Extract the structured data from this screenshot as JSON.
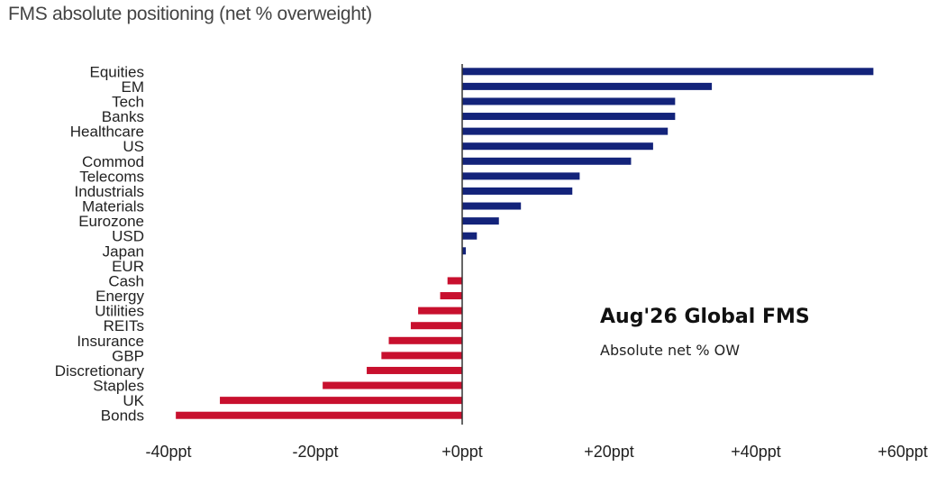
{
  "title": "FMS absolute positioning (net % overweight)",
  "chart_data": {
    "type": "bar",
    "orientation": "horizontal",
    "title": "FMS absolute positioning (net % overweight)",
    "categories": [
      "Equities",
      "EM",
      "Tech",
      "Banks",
      "Healthcare",
      "US",
      "Commod",
      "Telecoms",
      "Industrials",
      "Materials",
      "Eurozone",
      "USD",
      "Japan",
      "EUR",
      "Cash",
      "Energy",
      "Utilities",
      "REITs",
      "Insurance",
      "GBP",
      "Discretionary",
      "Staples",
      "UK",
      "Bonds"
    ],
    "values": [
      56,
      34,
      29,
      29,
      28,
      26,
      23,
      16,
      15,
      8,
      5,
      2,
      0.5,
      0,
      -2,
      -3,
      -6,
      -7,
      -10,
      -11,
      -13,
      -19,
      -33,
      -39
    ],
    "xlim": [
      -40,
      60
    ],
    "xticks": [
      "-40ppt",
      "-20ppt",
      "+0ppt",
      "+20ppt",
      "+40ppt",
      "+60ppt"
    ],
    "xtick_values": [
      -40,
      -20,
      0,
      20,
      40,
      60
    ],
    "colors": {
      "positive": "#13237a",
      "negative": "#c8102e"
    },
    "annotation": {
      "title": "Aug'26 Global FMS",
      "subtitle": "Absolute net % OW"
    },
    "grid": false,
    "legend": "none"
  }
}
